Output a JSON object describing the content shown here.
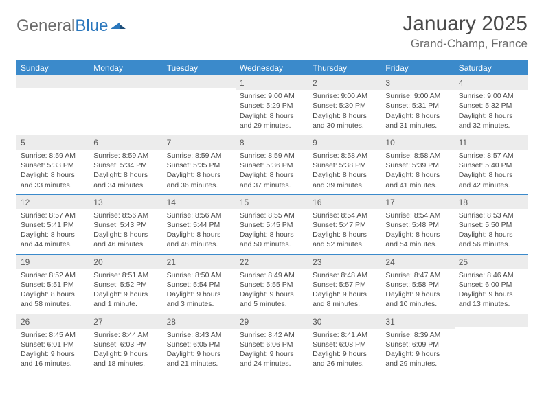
{
  "brand": {
    "part1": "General",
    "part2": "Blue"
  },
  "title": "January 2025",
  "location": "Grand-Champ, France",
  "colors": {
    "header_bg": "#3b8acb",
    "header_text": "#ffffff",
    "daynum_bg": "#ececec",
    "week_border": "#3b8acb",
    "text": "#4a4a4a",
    "logo_gray": "#6a6a6a",
    "logo_blue": "#2a77bd"
  },
  "weekdays": [
    "Sunday",
    "Monday",
    "Tuesday",
    "Wednesday",
    "Thursday",
    "Friday",
    "Saturday"
  ],
  "weeks": [
    [
      {
        "n": "",
        "lines": []
      },
      {
        "n": "",
        "lines": []
      },
      {
        "n": "",
        "lines": []
      },
      {
        "n": "1",
        "lines": [
          "Sunrise: 9:00 AM",
          "Sunset: 5:29 PM",
          "Daylight: 8 hours",
          "and 29 minutes."
        ]
      },
      {
        "n": "2",
        "lines": [
          "Sunrise: 9:00 AM",
          "Sunset: 5:30 PM",
          "Daylight: 8 hours",
          "and 30 minutes."
        ]
      },
      {
        "n": "3",
        "lines": [
          "Sunrise: 9:00 AM",
          "Sunset: 5:31 PM",
          "Daylight: 8 hours",
          "and 31 minutes."
        ]
      },
      {
        "n": "4",
        "lines": [
          "Sunrise: 9:00 AM",
          "Sunset: 5:32 PM",
          "Daylight: 8 hours",
          "and 32 minutes."
        ]
      }
    ],
    [
      {
        "n": "5",
        "lines": [
          "Sunrise: 8:59 AM",
          "Sunset: 5:33 PM",
          "Daylight: 8 hours",
          "and 33 minutes."
        ]
      },
      {
        "n": "6",
        "lines": [
          "Sunrise: 8:59 AM",
          "Sunset: 5:34 PM",
          "Daylight: 8 hours",
          "and 34 minutes."
        ]
      },
      {
        "n": "7",
        "lines": [
          "Sunrise: 8:59 AM",
          "Sunset: 5:35 PM",
          "Daylight: 8 hours",
          "and 36 minutes."
        ]
      },
      {
        "n": "8",
        "lines": [
          "Sunrise: 8:59 AM",
          "Sunset: 5:36 PM",
          "Daylight: 8 hours",
          "and 37 minutes."
        ]
      },
      {
        "n": "9",
        "lines": [
          "Sunrise: 8:58 AM",
          "Sunset: 5:38 PM",
          "Daylight: 8 hours",
          "and 39 minutes."
        ]
      },
      {
        "n": "10",
        "lines": [
          "Sunrise: 8:58 AM",
          "Sunset: 5:39 PM",
          "Daylight: 8 hours",
          "and 41 minutes."
        ]
      },
      {
        "n": "11",
        "lines": [
          "Sunrise: 8:57 AM",
          "Sunset: 5:40 PM",
          "Daylight: 8 hours",
          "and 42 minutes."
        ]
      }
    ],
    [
      {
        "n": "12",
        "lines": [
          "Sunrise: 8:57 AM",
          "Sunset: 5:41 PM",
          "Daylight: 8 hours",
          "and 44 minutes."
        ]
      },
      {
        "n": "13",
        "lines": [
          "Sunrise: 8:56 AM",
          "Sunset: 5:43 PM",
          "Daylight: 8 hours",
          "and 46 minutes."
        ]
      },
      {
        "n": "14",
        "lines": [
          "Sunrise: 8:56 AM",
          "Sunset: 5:44 PM",
          "Daylight: 8 hours",
          "and 48 minutes."
        ]
      },
      {
        "n": "15",
        "lines": [
          "Sunrise: 8:55 AM",
          "Sunset: 5:45 PM",
          "Daylight: 8 hours",
          "and 50 minutes."
        ]
      },
      {
        "n": "16",
        "lines": [
          "Sunrise: 8:54 AM",
          "Sunset: 5:47 PM",
          "Daylight: 8 hours",
          "and 52 minutes."
        ]
      },
      {
        "n": "17",
        "lines": [
          "Sunrise: 8:54 AM",
          "Sunset: 5:48 PM",
          "Daylight: 8 hours",
          "and 54 minutes."
        ]
      },
      {
        "n": "18",
        "lines": [
          "Sunrise: 8:53 AM",
          "Sunset: 5:50 PM",
          "Daylight: 8 hours",
          "and 56 minutes."
        ]
      }
    ],
    [
      {
        "n": "19",
        "lines": [
          "Sunrise: 8:52 AM",
          "Sunset: 5:51 PM",
          "Daylight: 8 hours",
          "and 58 minutes."
        ]
      },
      {
        "n": "20",
        "lines": [
          "Sunrise: 8:51 AM",
          "Sunset: 5:52 PM",
          "Daylight: 9 hours",
          "and 1 minute."
        ]
      },
      {
        "n": "21",
        "lines": [
          "Sunrise: 8:50 AM",
          "Sunset: 5:54 PM",
          "Daylight: 9 hours",
          "and 3 minutes."
        ]
      },
      {
        "n": "22",
        "lines": [
          "Sunrise: 8:49 AM",
          "Sunset: 5:55 PM",
          "Daylight: 9 hours",
          "and 5 minutes."
        ]
      },
      {
        "n": "23",
        "lines": [
          "Sunrise: 8:48 AM",
          "Sunset: 5:57 PM",
          "Daylight: 9 hours",
          "and 8 minutes."
        ]
      },
      {
        "n": "24",
        "lines": [
          "Sunrise: 8:47 AM",
          "Sunset: 5:58 PM",
          "Daylight: 9 hours",
          "and 10 minutes."
        ]
      },
      {
        "n": "25",
        "lines": [
          "Sunrise: 8:46 AM",
          "Sunset: 6:00 PM",
          "Daylight: 9 hours",
          "and 13 minutes."
        ]
      }
    ],
    [
      {
        "n": "26",
        "lines": [
          "Sunrise: 8:45 AM",
          "Sunset: 6:01 PM",
          "Daylight: 9 hours",
          "and 16 minutes."
        ]
      },
      {
        "n": "27",
        "lines": [
          "Sunrise: 8:44 AM",
          "Sunset: 6:03 PM",
          "Daylight: 9 hours",
          "and 18 minutes."
        ]
      },
      {
        "n": "28",
        "lines": [
          "Sunrise: 8:43 AM",
          "Sunset: 6:05 PM",
          "Daylight: 9 hours",
          "and 21 minutes."
        ]
      },
      {
        "n": "29",
        "lines": [
          "Sunrise: 8:42 AM",
          "Sunset: 6:06 PM",
          "Daylight: 9 hours",
          "and 24 minutes."
        ]
      },
      {
        "n": "30",
        "lines": [
          "Sunrise: 8:41 AM",
          "Sunset: 6:08 PM",
          "Daylight: 9 hours",
          "and 26 minutes."
        ]
      },
      {
        "n": "31",
        "lines": [
          "Sunrise: 8:39 AM",
          "Sunset: 6:09 PM",
          "Daylight: 9 hours",
          "and 29 minutes."
        ]
      },
      {
        "n": "",
        "lines": []
      }
    ]
  ]
}
